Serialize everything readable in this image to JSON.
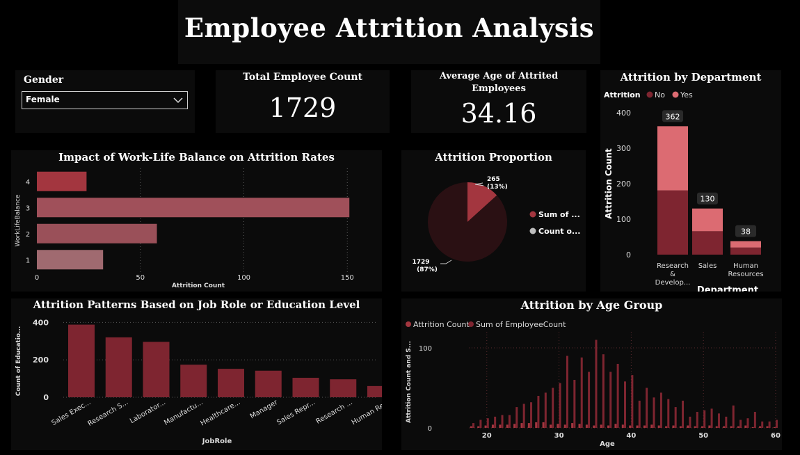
{
  "header": {
    "title": "Employee Attrition Analysis"
  },
  "slicer": {
    "label": "Gender",
    "value": "Female"
  },
  "cards": {
    "total_count": {
      "label": "Total Employee Count",
      "value": "1729"
    },
    "avg_age": {
      "label_line1": "Average Age of Attrited",
      "label_line2": "Employees",
      "value": "34.16"
    }
  },
  "colors": {
    "dark_red": "#7e2530",
    "red": "#a3363f",
    "pink": "#dc6b72",
    "rose": "#a06a70",
    "pie_dark": "#2a1013",
    "pie_label_bg": "#8e3640",
    "pie_count": "#bdbdbd"
  },
  "chart_data": [
    {
      "id": "worklife",
      "type": "bar",
      "orientation": "horizontal",
      "title": "Impact of Work-Life Balance on Attrition Rates",
      "xlabel": "Attrition Count",
      "ylabel": "WorkLifeBalance",
      "categories": [
        "4",
        "3",
        "2",
        "1"
      ],
      "values": [
        24,
        151,
        58,
        32
      ],
      "xlim": [
        0,
        160
      ],
      "xticks": [
        "0",
        "50",
        "100",
        "150"
      ],
      "grid": true
    },
    {
      "id": "proportion",
      "type": "pie",
      "title": "Attrition Proportion",
      "slices": [
        {
          "label": "Sum of ...",
          "value": 265,
          "label_line1": "265",
          "label_line2": "(13%)"
        },
        {
          "label": "Count o...",
          "value": 1729,
          "label_line1": "1729",
          "label_line2": "(87%)"
        }
      ],
      "legend": "right"
    },
    {
      "id": "department",
      "type": "bar",
      "stacked": true,
      "title": "Attrition by Department",
      "legend_title": "Attrition",
      "legend": "top-left",
      "series": [
        {
          "name": "No",
          "values": [
            181,
            66,
            20
          ]
        },
        {
          "name": "Yes",
          "values": [
            181,
            64,
            18
          ]
        }
      ],
      "totals": [
        "362",
        "130",
        "38"
      ],
      "categories": [
        [
          "Research",
          "&",
          "Develop..."
        ],
        [
          "Sales"
        ],
        [
          "Human",
          "Resources"
        ]
      ],
      "xlabel": "Department",
      "ylabel": "Attrition Count",
      "ylim": [
        0,
        400
      ],
      "yticks": [
        "0",
        "100",
        "200",
        "300",
        "400"
      ]
    },
    {
      "id": "jobrole",
      "type": "bar",
      "title": "Attrition Patterns Based on Job Role or Education Level",
      "xlabel": "JobRole",
      "ylabel": "Count of Educatio...",
      "categories": [
        "Sales Exec...",
        "Research S...",
        "Laborator...",
        "Manufactu...",
        "Healthcare...",
        "Manager",
        "Sales Repr...",
        "Research ...",
        "Human Re..."
      ],
      "values": [
        388,
        320,
        296,
        174,
        152,
        142,
        104,
        96,
        60
      ],
      "ylim": [
        0,
        420
      ],
      "yticks": [
        "0",
        "200",
        "400"
      ],
      "grid": true
    },
    {
      "id": "agegroup",
      "type": "bar",
      "title": "Attrition by Age Group",
      "xlabel": "Age",
      "ylabel": "Attrition Count and S...",
      "legend": "top-left",
      "series": [
        {
          "name": "Attrition Count",
          "values": [
            2,
            2,
            3,
            4,
            4,
            4,
            5,
            6,
            6,
            7,
            7,
            4,
            5,
            4,
            6,
            5,
            4,
            3,
            4,
            3,
            5,
            4,
            3,
            3,
            3,
            4,
            3,
            2,
            3,
            2,
            3,
            2,
            2,
            3,
            2,
            2,
            2,
            2,
            3,
            1,
            2,
            2,
            1
          ]
        },
        {
          "name": "Sum of EmployeeCount",
          "values": [
            6,
            10,
            12,
            14,
            16,
            16,
            26,
            30,
            32,
            40,
            44,
            50,
            56,
            90,
            60,
            88,
            70,
            110,
            92,
            70,
            80,
            58,
            66,
            34,
            50,
            38,
            44,
            36,
            26,
            34,
            14,
            20,
            22,
            24,
            18,
            14,
            28,
            10,
            12,
            20,
            8,
            8,
            10
          ]
        }
      ],
      "x": [
        18,
        19,
        20,
        21,
        22,
        23,
        24,
        25,
        26,
        27,
        28,
        29,
        30,
        31,
        32,
        33,
        34,
        35,
        36,
        37,
        38,
        39,
        40,
        41,
        42,
        43,
        44,
        45,
        46,
        47,
        48,
        49,
        50,
        51,
        52,
        53,
        54,
        55,
        56,
        57,
        58,
        59,
        60
      ],
      "xlim": [
        18,
        60
      ],
      "xticks": [
        "20",
        "30",
        "40",
        "50",
        "60"
      ],
      "ylim": [
        0,
        120
      ],
      "yticks": [
        "0",
        "100"
      ]
    }
  ]
}
